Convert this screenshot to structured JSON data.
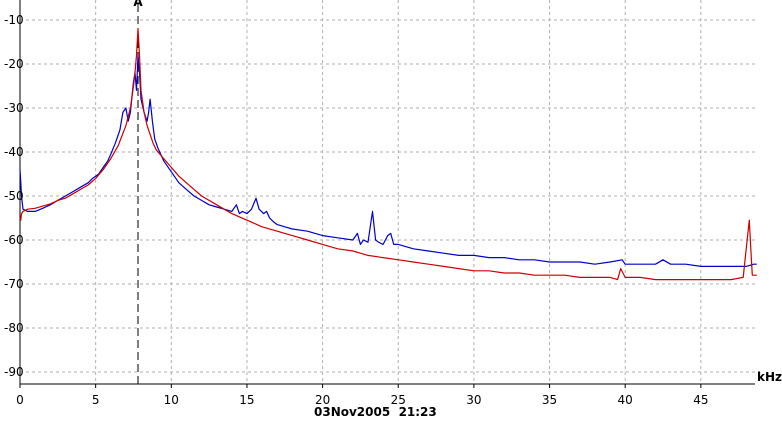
{
  "chart_data": {
    "type": "line",
    "xlabel": "kHz",
    "ylabel": "",
    "xlim": [
      0,
      48.7
    ],
    "ylim": [
      -94,
      -5
    ],
    "xticks": [
      0,
      5,
      10,
      15,
      20,
      25,
      30,
      35,
      40,
      45
    ],
    "yticks": [
      -10,
      -20,
      -30,
      -40,
      -50,
      -60,
      -70,
      -80,
      -90
    ],
    "grid": {
      "horizontal": "dashed",
      "vertical": "dashed"
    },
    "timestamp": "03Nov2005  21:23",
    "marker": {
      "x": 7.8,
      "label": "A"
    },
    "series": [
      {
        "color": "#0000cc",
        "x": [
          0,
          0.05,
          0.1,
          0.2,
          0.5,
          1,
          1.5,
          2,
          2.5,
          3,
          3.5,
          4,
          4.5,
          4.8,
          5,
          5.2,
          5.5,
          5.8,
          6,
          6.3,
          6.6,
          6.8,
          7.0,
          7.15,
          7.3,
          7.5,
          7.6,
          7.7,
          7.8,
          7.9,
          8.0,
          8.2,
          8.4,
          8.5,
          8.6,
          8.75,
          8.9,
          9.1,
          9.5,
          10,
          10.5,
          11,
          11.5,
          12,
          12.5,
          13,
          13.5,
          14,
          14.3,
          14.5,
          14.7,
          15,
          15.3,
          15.6,
          15.8,
          16.1,
          16.3,
          16.5,
          16.8,
          17,
          17.5,
          18,
          19,
          20,
          21,
          22,
          22.3,
          22.5,
          22.7,
          23,
          23.3,
          23.5,
          23.7,
          24,
          24.3,
          24.5,
          24.7,
          25,
          26,
          27,
          28,
          29,
          30,
          31,
          32,
          33,
          34,
          35,
          36,
          37,
          38,
          39,
          39.8,
          40,
          40.2,
          41,
          42,
          42.5,
          43,
          44,
          45,
          46,
          47,
          47.5,
          48,
          48.5,
          48.7
        ],
        "values": [
          -44,
          -47,
          -50,
          -53,
          -53.5,
          -53.5,
          -52.8,
          -52,
          -51,
          -50,
          -49,
          -48,
          -47,
          -46,
          -45.5,
          -45,
          -43.5,
          -42,
          -40.5,
          -38,
          -35,
          -31,
          -30,
          -33,
          -31,
          -24,
          -22,
          -26,
          -18,
          -22,
          -28,
          -31,
          -33,
          -31,
          -28,
          -33,
          -37,
          -39,
          -42,
          -44.5,
          -47,
          -48.5,
          -50,
          -51,
          -52,
          -52.5,
          -53,
          -53.5,
          -52,
          -54,
          -53.5,
          -54,
          -53,
          -50.5,
          -53,
          -54,
          -53.5,
          -55,
          -56,
          -56.5,
          -57,
          -57.5,
          -58,
          -59,
          -59.5,
          -60,
          -58.5,
          -61,
          -60,
          -60.5,
          -53.5,
          -60,
          -60.5,
          -61,
          -59,
          -58.5,
          -61,
          -61,
          -62,
          -62.5,
          -63,
          -63.5,
          -63.5,
          -64,
          -64,
          -64.5,
          -64.5,
          -65,
          -65,
          -65,
          -65.5,
          -65,
          -64.5,
          -65.5,
          -65.5,
          -65.5,
          -65.5,
          -64.5,
          -65.5,
          -65.5,
          -66,
          -66,
          -66,
          -66,
          -66,
          -65.5,
          -65.5
        ]
      },
      {
        "color": "#cc0000",
        "x": [
          0,
          0.05,
          0.1,
          0.2,
          0.5,
          1,
          1.5,
          2,
          2.5,
          3,
          3.5,
          4,
          4.5,
          5,
          5.5,
          6,
          6.5,
          7,
          7.3,
          7.5,
          7.6,
          7.7,
          7.8,
          7.9,
          8.0,
          8.2,
          8.4,
          8.6,
          8.8,
          9.0,
          9.5,
          10,
          10.5,
          11,
          11.5,
          12,
          13,
          14,
          15,
          16,
          17,
          18,
          19,
          20,
          21,
          22,
          23,
          24,
          25,
          26,
          27,
          28,
          29,
          30,
          31,
          32,
          33,
          34,
          35,
          36,
          37,
          38,
          39,
          39.5,
          39.7,
          40,
          41,
          42,
          43,
          44,
          45,
          46,
          47,
          47.8,
          48,
          48.2,
          48.3,
          48.4,
          48.5,
          48.7
        ],
        "values": [
          -55,
          -55.5,
          -54,
          -53.5,
          -53,
          -52.8,
          -52.3,
          -51.8,
          -51,
          -50.5,
          -49.5,
          -48.5,
          -47.5,
          -46,
          -44,
          -41.5,
          -38.5,
          -34,
          -30,
          -25,
          -22,
          -18,
          -12,
          -18,
          -26,
          -31,
          -34,
          -36,
          -38,
          -39.5,
          -41.5,
          -43.5,
          -45.5,
          -47,
          -48.5,
          -50,
          -52,
          -54,
          -55.5,
          -57,
          -58,
          -59,
          -60,
          -61,
          -62,
          -62.5,
          -63.5,
          -64,
          -64.5,
          -65,
          -65.5,
          -66,
          -66.5,
          -67,
          -67,
          -67.5,
          -67.5,
          -68,
          -68,
          -68,
          -68.5,
          -68.5,
          -68.5,
          -69,
          -66.5,
          -68.5,
          -68.5,
          -69,
          -69,
          -69,
          -69,
          -69,
          -69,
          -68.5,
          -62,
          -55.5,
          -62,
          -68,
          -68,
          -68
        ]
      }
    ]
  }
}
